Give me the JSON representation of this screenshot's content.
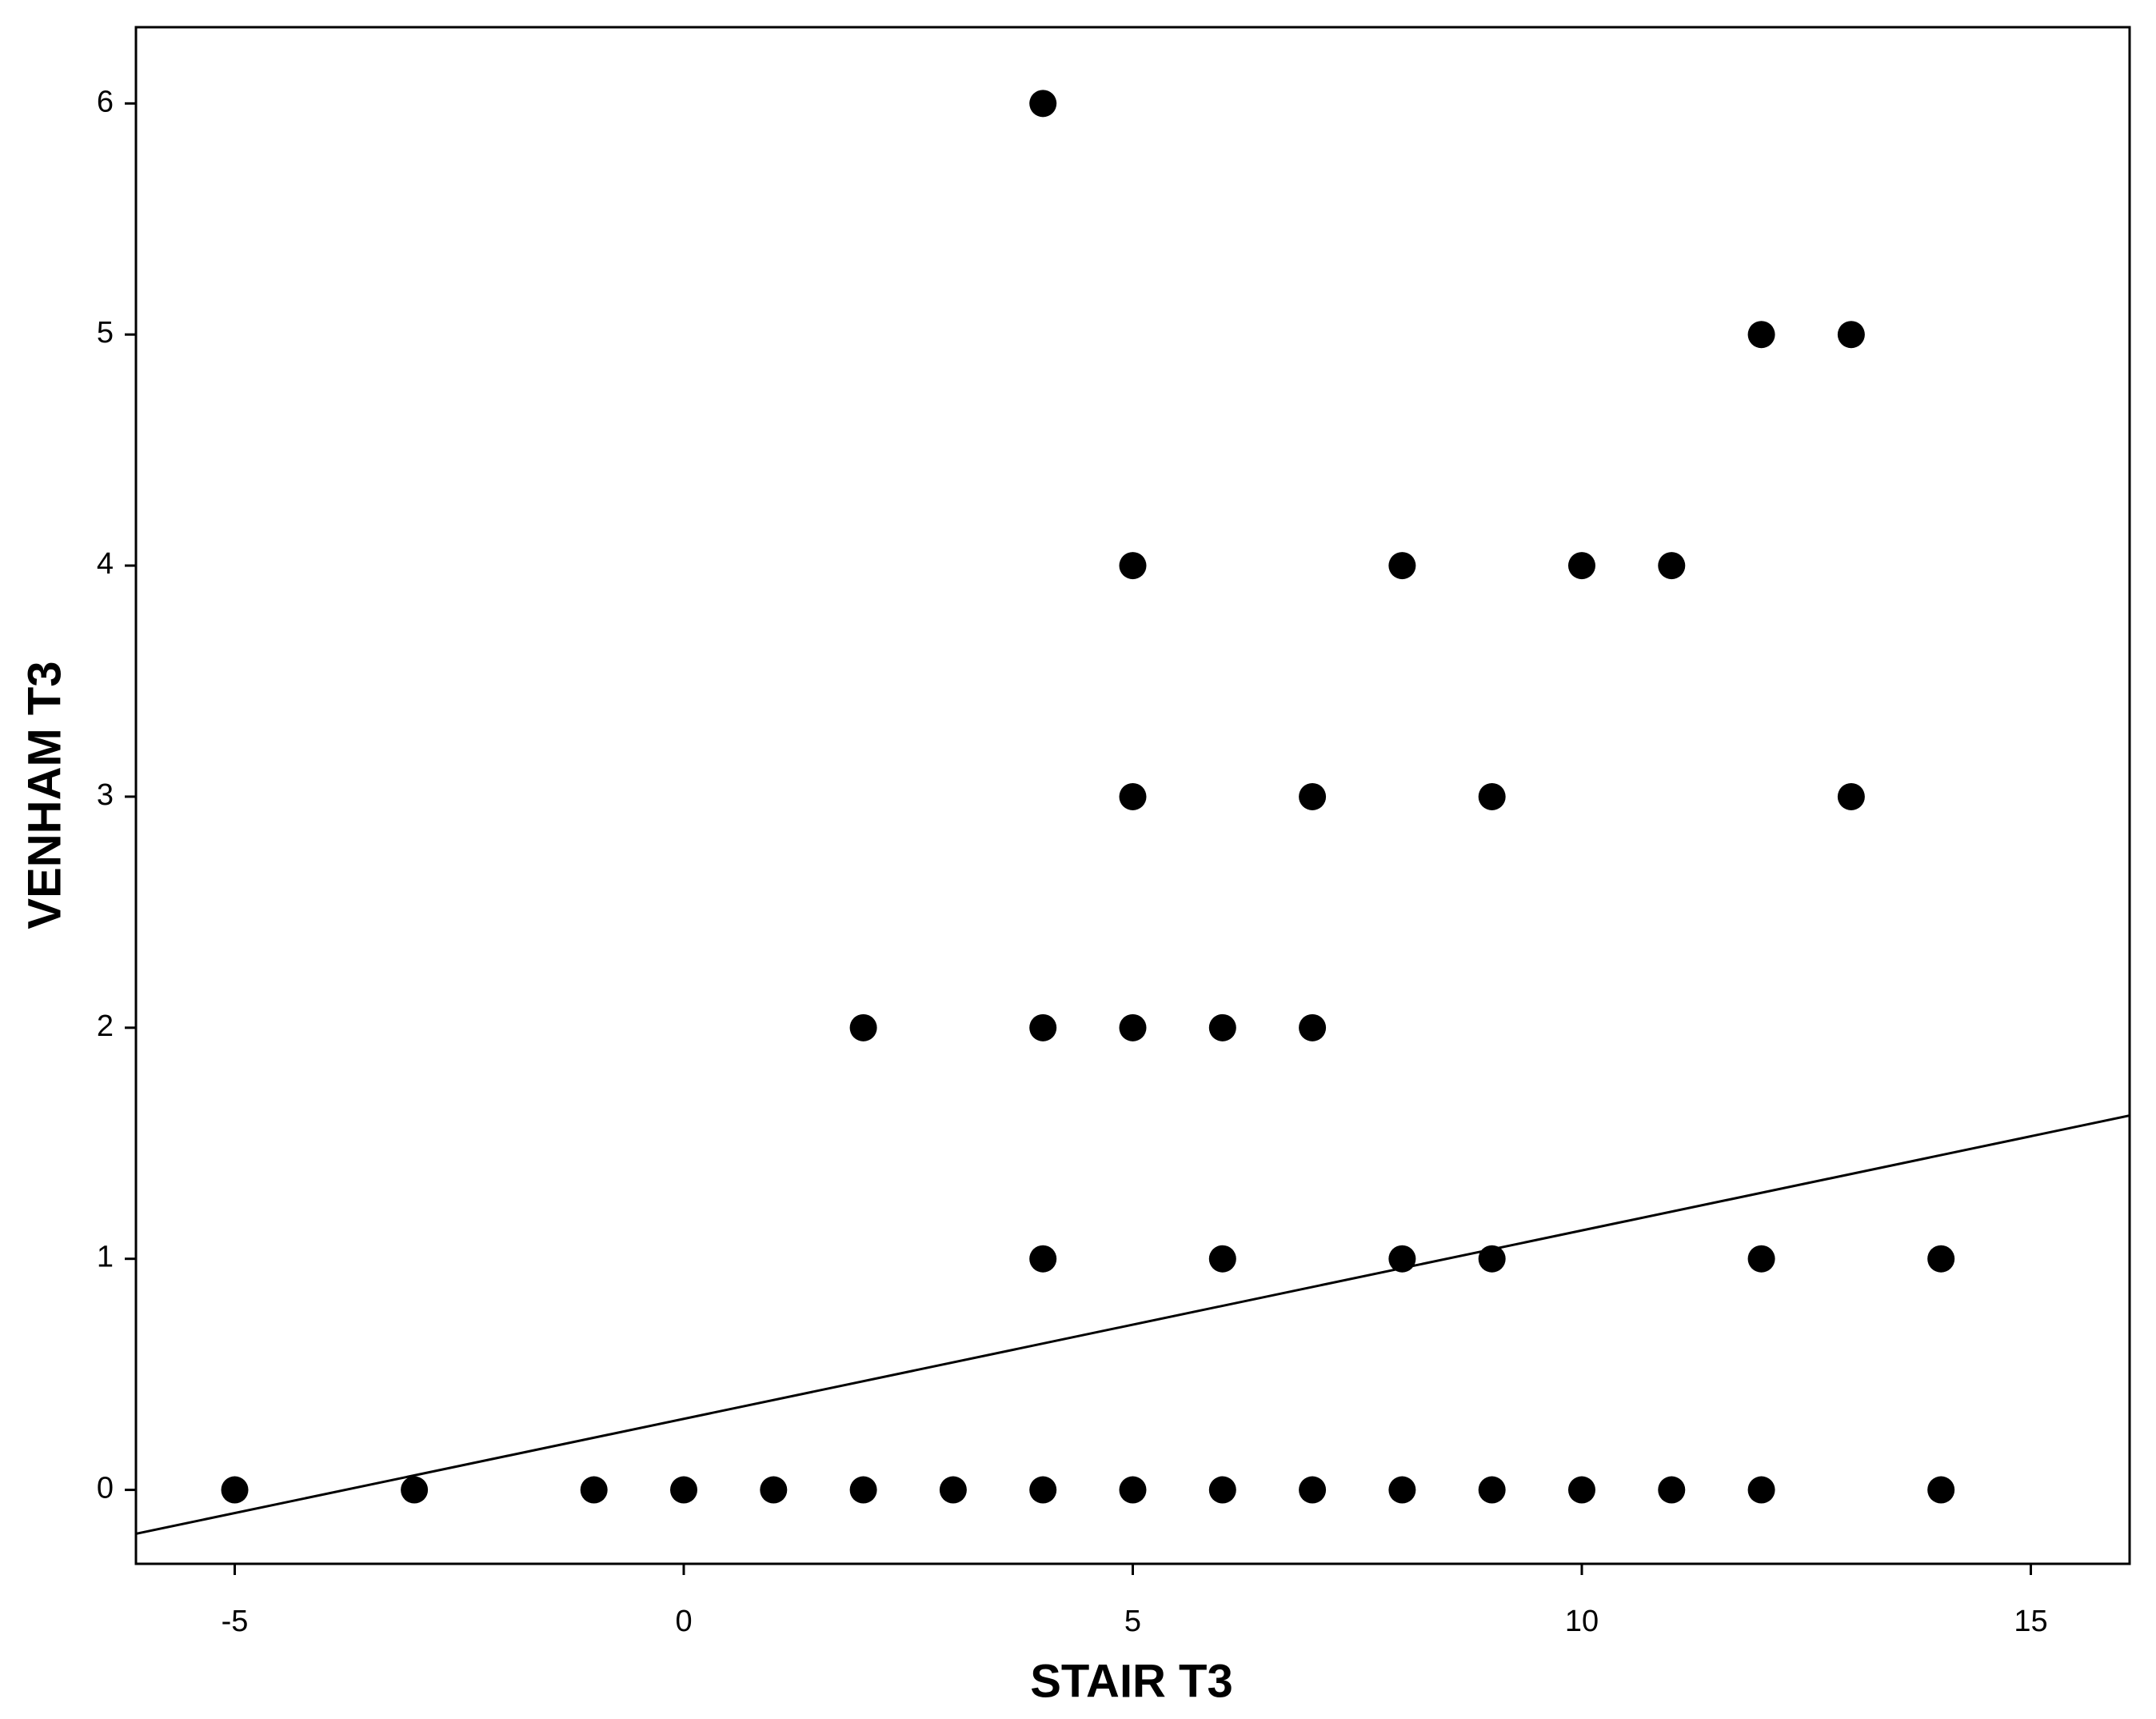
{
  "chart_data": {
    "type": "scatter",
    "x_label": "STAIR T3",
    "y_label": "VENHAM T3",
    "x": [
      4,
      12,
      13,
      5,
      8,
      10,
      11,
      5,
      7,
      9,
      13,
      2,
      4,
      5,
      6,
      7,
      4,
      6,
      8,
      9,
      12,
      14,
      -5,
      -3,
      -1,
      0,
      1,
      2,
      3,
      4,
      5,
      6,
      7,
      8,
      9,
      10,
      11,
      12,
      14
    ],
    "y": [
      6,
      5,
      5,
      4,
      4,
      4,
      4,
      3,
      3,
      3,
      3,
      2,
      2,
      2,
      2,
      2,
      1,
      1,
      1,
      1,
      1,
      1,
      0,
      0,
      0,
      0,
      0,
      0,
      0,
      0,
      0,
      0,
      0,
      0,
      0,
      0,
      0,
      0,
      0
    ],
    "color": "#000000",
    "fit_line": {
      "x": [
        -6.1,
        16.1
      ],
      "y": [
        -0.19,
        1.62
      ]
    },
    "xlim": [
      -6.1,
      16.1
    ],
    "ylim": [
      -0.32,
      6.33
    ],
    "xticks": [
      -5,
      0,
      5,
      10,
      15
    ],
    "yticks": [
      0,
      1,
      2,
      3,
      4,
      5,
      6
    ]
  }
}
